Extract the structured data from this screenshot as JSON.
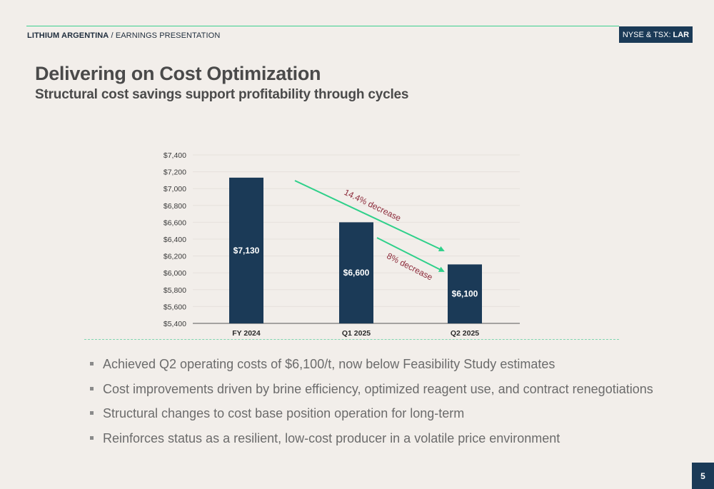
{
  "header": {
    "company": "LITHIUM ARGENTINA",
    "separator": " / ",
    "section": "EARNINGS PRESENTATION",
    "ticker_prefix": "NYSE & TSX:",
    "ticker_symbol": "LAR"
  },
  "slide": {
    "title": "Delivering on Cost Optimization",
    "subtitle": "Structural cost savings support profitability through cycles",
    "page_number": "5"
  },
  "chart_data": {
    "type": "bar",
    "categories": [
      "FY 2024",
      "Q1 2025",
      "Q2 2025"
    ],
    "values": [
      7130,
      6600,
      6100
    ],
    "data_labels": [
      "$7,130",
      "$6,600",
      "$6,100"
    ],
    "ylim": [
      5400,
      7400
    ],
    "yticks": [
      "$5,400",
      "$5,600",
      "$5,800",
      "$6,000",
      "$6,200",
      "$6,400",
      "$6,600",
      "$6,800",
      "$7,000",
      "$7,200",
      "$7,400"
    ],
    "ytick_values": [
      5400,
      5600,
      5800,
      6000,
      6200,
      6400,
      6600,
      6800,
      7000,
      7200,
      7400
    ],
    "grid": true,
    "bar_color": "#1b3a57",
    "arrow_color": "#2fd08a",
    "annotation_color": "#8c2a3a",
    "annotations": [
      {
        "text": "14.4% decrease",
        "from": "FY 2024",
        "to": "Q2 2025"
      },
      {
        "text": "8% decrease",
        "from": "Q1 2025",
        "to": "Q2 2025"
      }
    ]
  },
  "bullets": [
    "Achieved Q2 operating costs of $6,100/t, now below Feasibility Study estimates",
    "Cost improvements driven by brine efficiency, optimized reagent use, and contract renegotiations",
    "Structural changes to cost base position operation for long-term",
    "Reinforces status as a resilient, low-cost producer in a volatile price environment"
  ]
}
